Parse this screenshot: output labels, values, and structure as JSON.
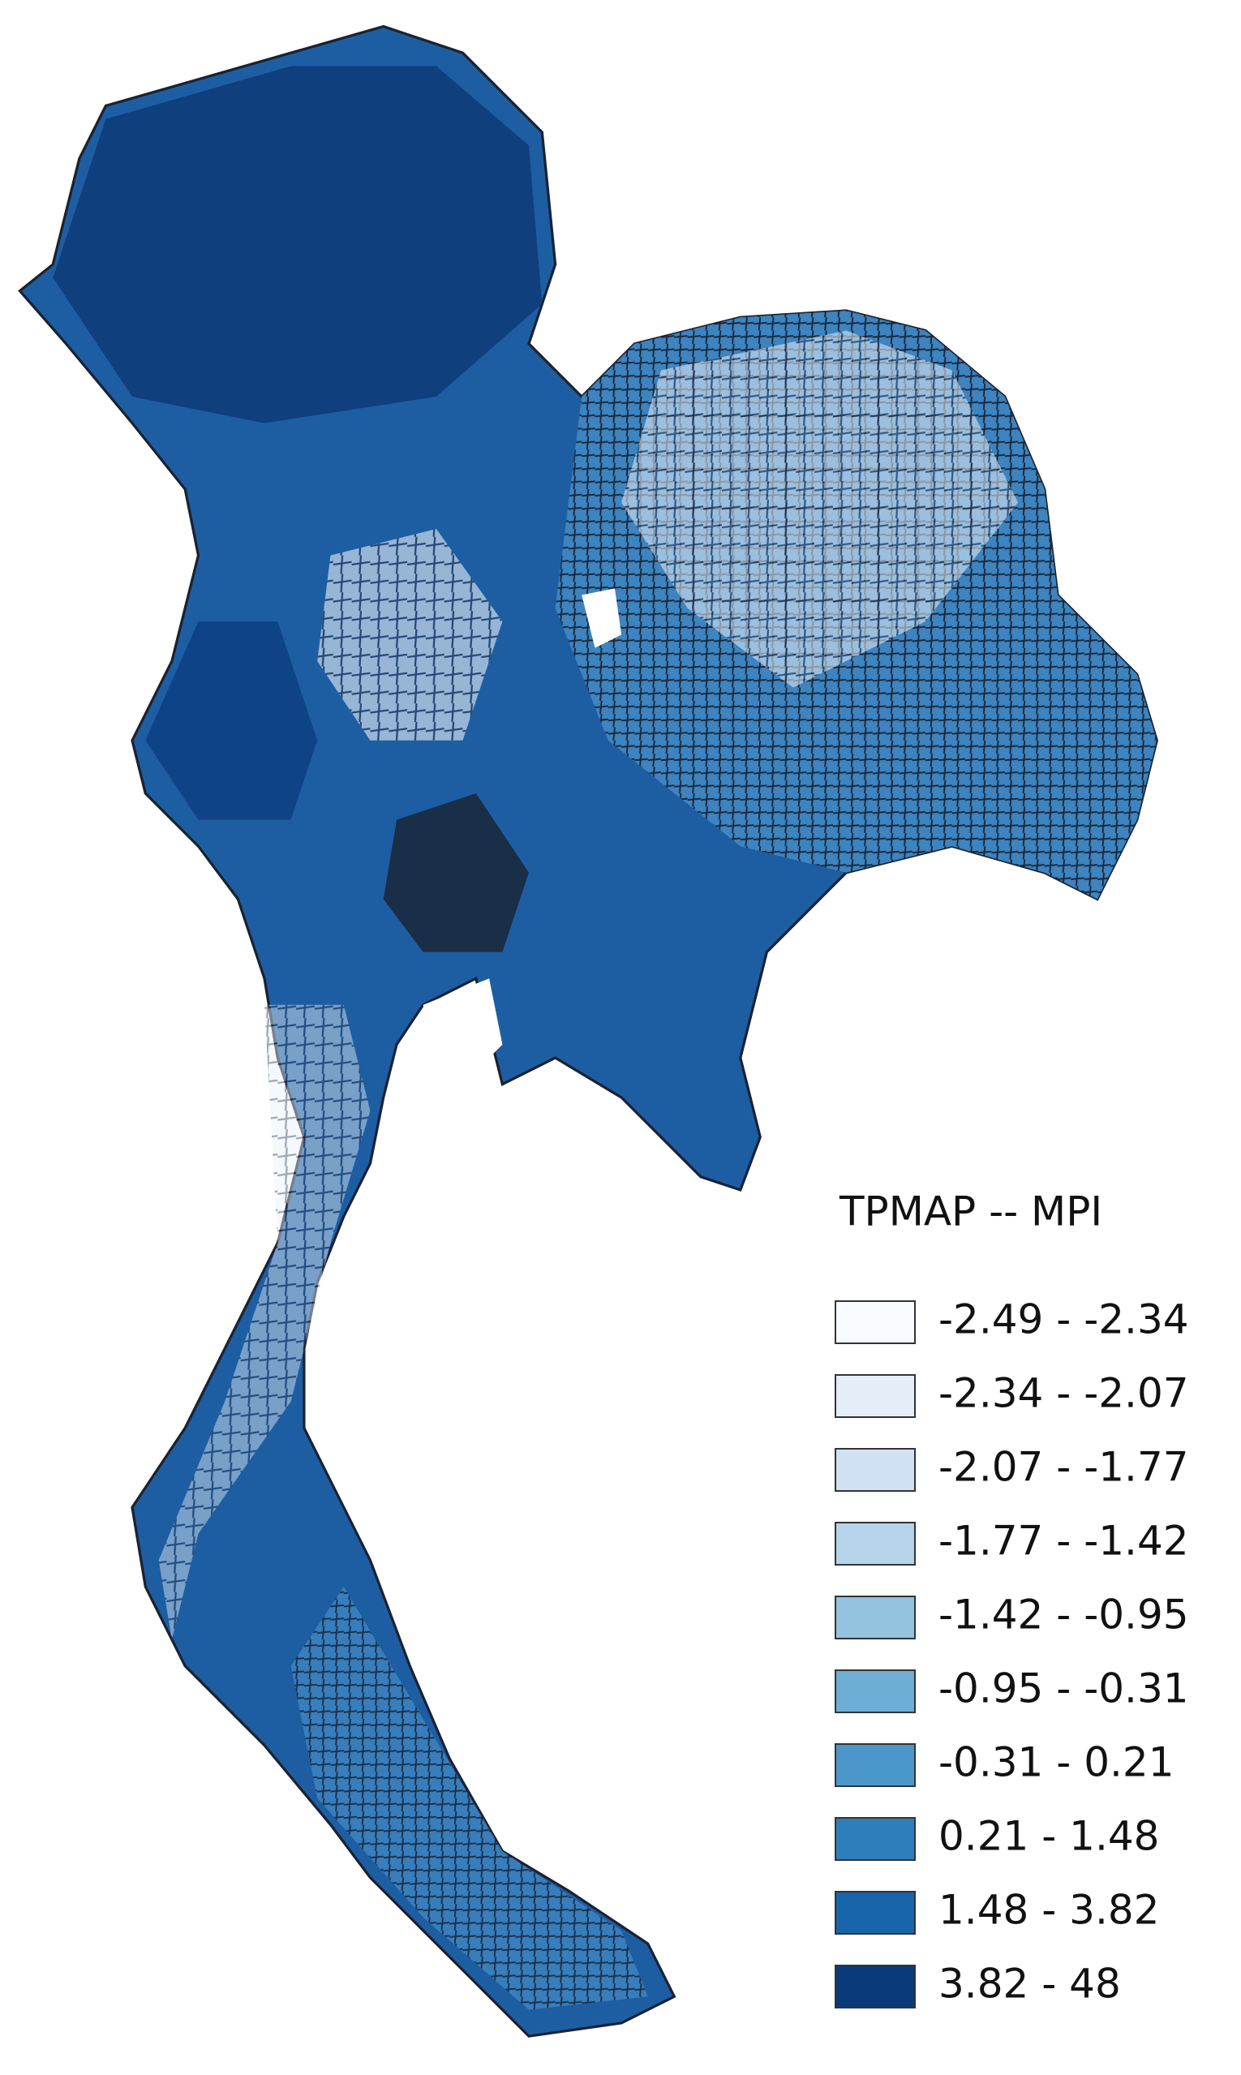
{
  "legend": {
    "title": "TPMAP -- MPI",
    "classes": [
      {
        "label": "-2.49 - -2.34",
        "color": "#f7fbff"
      },
      {
        "label": "-2.34 - -2.07",
        "color": "#e3eef9"
      },
      {
        "label": "-2.07 - -1.77",
        "color": "#cfe1f2"
      },
      {
        "label": "-1.77 - -1.42",
        "color": "#b5d4e9"
      },
      {
        "label": "-1.42 - -0.95",
        "color": "#93c3df"
      },
      {
        "label": "-0.95 - -0.31",
        "color": "#6daed5"
      },
      {
        "label": "-0.31 - 0.21",
        "color": "#4b97c9"
      },
      {
        "label": "0.21 - 1.48",
        "color": "#2f7ebc"
      },
      {
        "label": "1.48 - 3.82",
        "color": "#1864aa"
      },
      {
        "label": "3.82 - 48",
        "color": "#0a3a7a"
      }
    ]
  }
}
